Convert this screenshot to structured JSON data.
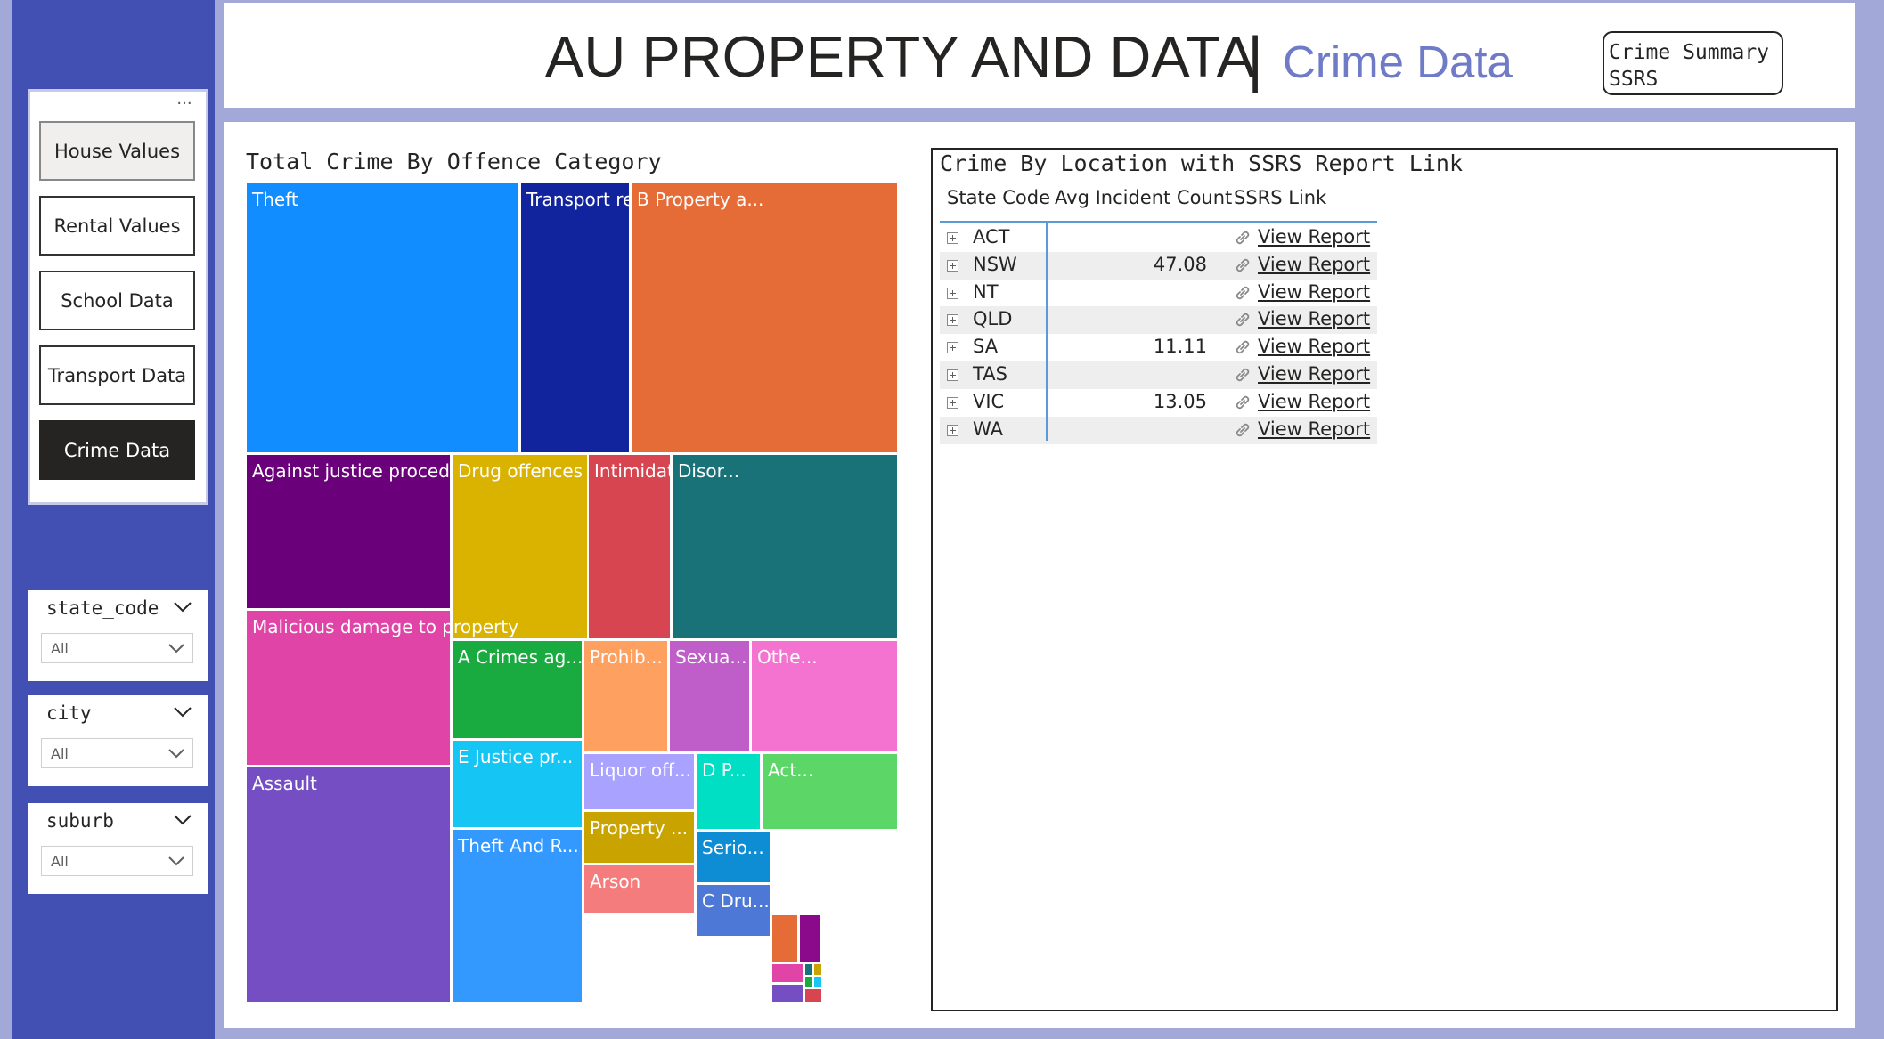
{
  "nav": {
    "more_label": "...",
    "buttons": [
      "House Values",
      "Rental Values",
      "School Data",
      "Transport Data",
      "Crime Data"
    ]
  },
  "slicers": [
    {
      "field": "state_code",
      "value": "All"
    },
    {
      "field": "city",
      "value": "All"
    },
    {
      "field": "suburb",
      "value": "All"
    }
  ],
  "header": {
    "title": "AU PROPERTY AND DATA",
    "separator": "|",
    "subtitle": "Crime Data",
    "ssrs_button": "Crime Summary SSRS"
  },
  "treemap": {
    "title": "Total Crime By Offence Category",
    "tiles": [
      {
        "label": "Theft",
        "color": "#118dff"
      },
      {
        "label": "Transport reg...",
        "color": "#12239e"
      },
      {
        "label": "B Property a...",
        "color": "#e66c37"
      },
      {
        "label": "Against justice procedures",
        "color": "#6b007b"
      },
      {
        "label": "Drug offences",
        "color": "#d9b300"
      },
      {
        "label": "Intimidati...",
        "color": "#d64550"
      },
      {
        "label": "Disor...",
        "color": "#197278"
      },
      {
        "label": "Malicious damage to property",
        "color": "#e044a7"
      },
      {
        "label": "A Crimes ag...",
        "color": "#1aab40"
      },
      {
        "label": "Prohib...",
        "color": "#fea060"
      },
      {
        "label": "Sexua...",
        "color": "#c05ec9"
      },
      {
        "label": "Othe...",
        "color": "#f472d0"
      },
      {
        "label": "Assault",
        "color": "#744ec2"
      },
      {
        "label": "E Justice pr...",
        "color": "#15c6f4"
      },
      {
        "label": "Liquor off...",
        "color": "#a9a3ff"
      },
      {
        "label": "D P...",
        "color": "#00dfc4"
      },
      {
        "label": "Act...",
        "color": "#5cd667"
      },
      {
        "label": "Theft And R...",
        "color": "#3399ff"
      },
      {
        "label": "Property ...",
        "color": "#c9a300"
      },
      {
        "label": "Serio...",
        "color": "#0f8dd4"
      },
      {
        "label": "Arson",
        "color": "#f47c7c"
      },
      {
        "label": "C Dru...",
        "color": "#4d78d6"
      }
    ]
  },
  "table": {
    "title": "Crime By Location with SSRS Report Link",
    "columns": [
      "State Code",
      "Avg Incident Count",
      "SSRS Link"
    ],
    "rows": [
      {
        "state": "ACT",
        "avg": "",
        "link": "View Report"
      },
      {
        "state": "NSW",
        "avg": "47.08",
        "link": "View Report"
      },
      {
        "state": "NT",
        "avg": "",
        "link": "View Report"
      },
      {
        "state": "QLD",
        "avg": "",
        "link": "View Report"
      },
      {
        "state": "SA",
        "avg": "11.11",
        "link": "View Report"
      },
      {
        "state": "TAS",
        "avg": "",
        "link": "View Report"
      },
      {
        "state": "VIC",
        "avg": "13.05",
        "link": "View Report"
      },
      {
        "state": "WA",
        "avg": "",
        "link": "View Report"
      }
    ]
  }
}
